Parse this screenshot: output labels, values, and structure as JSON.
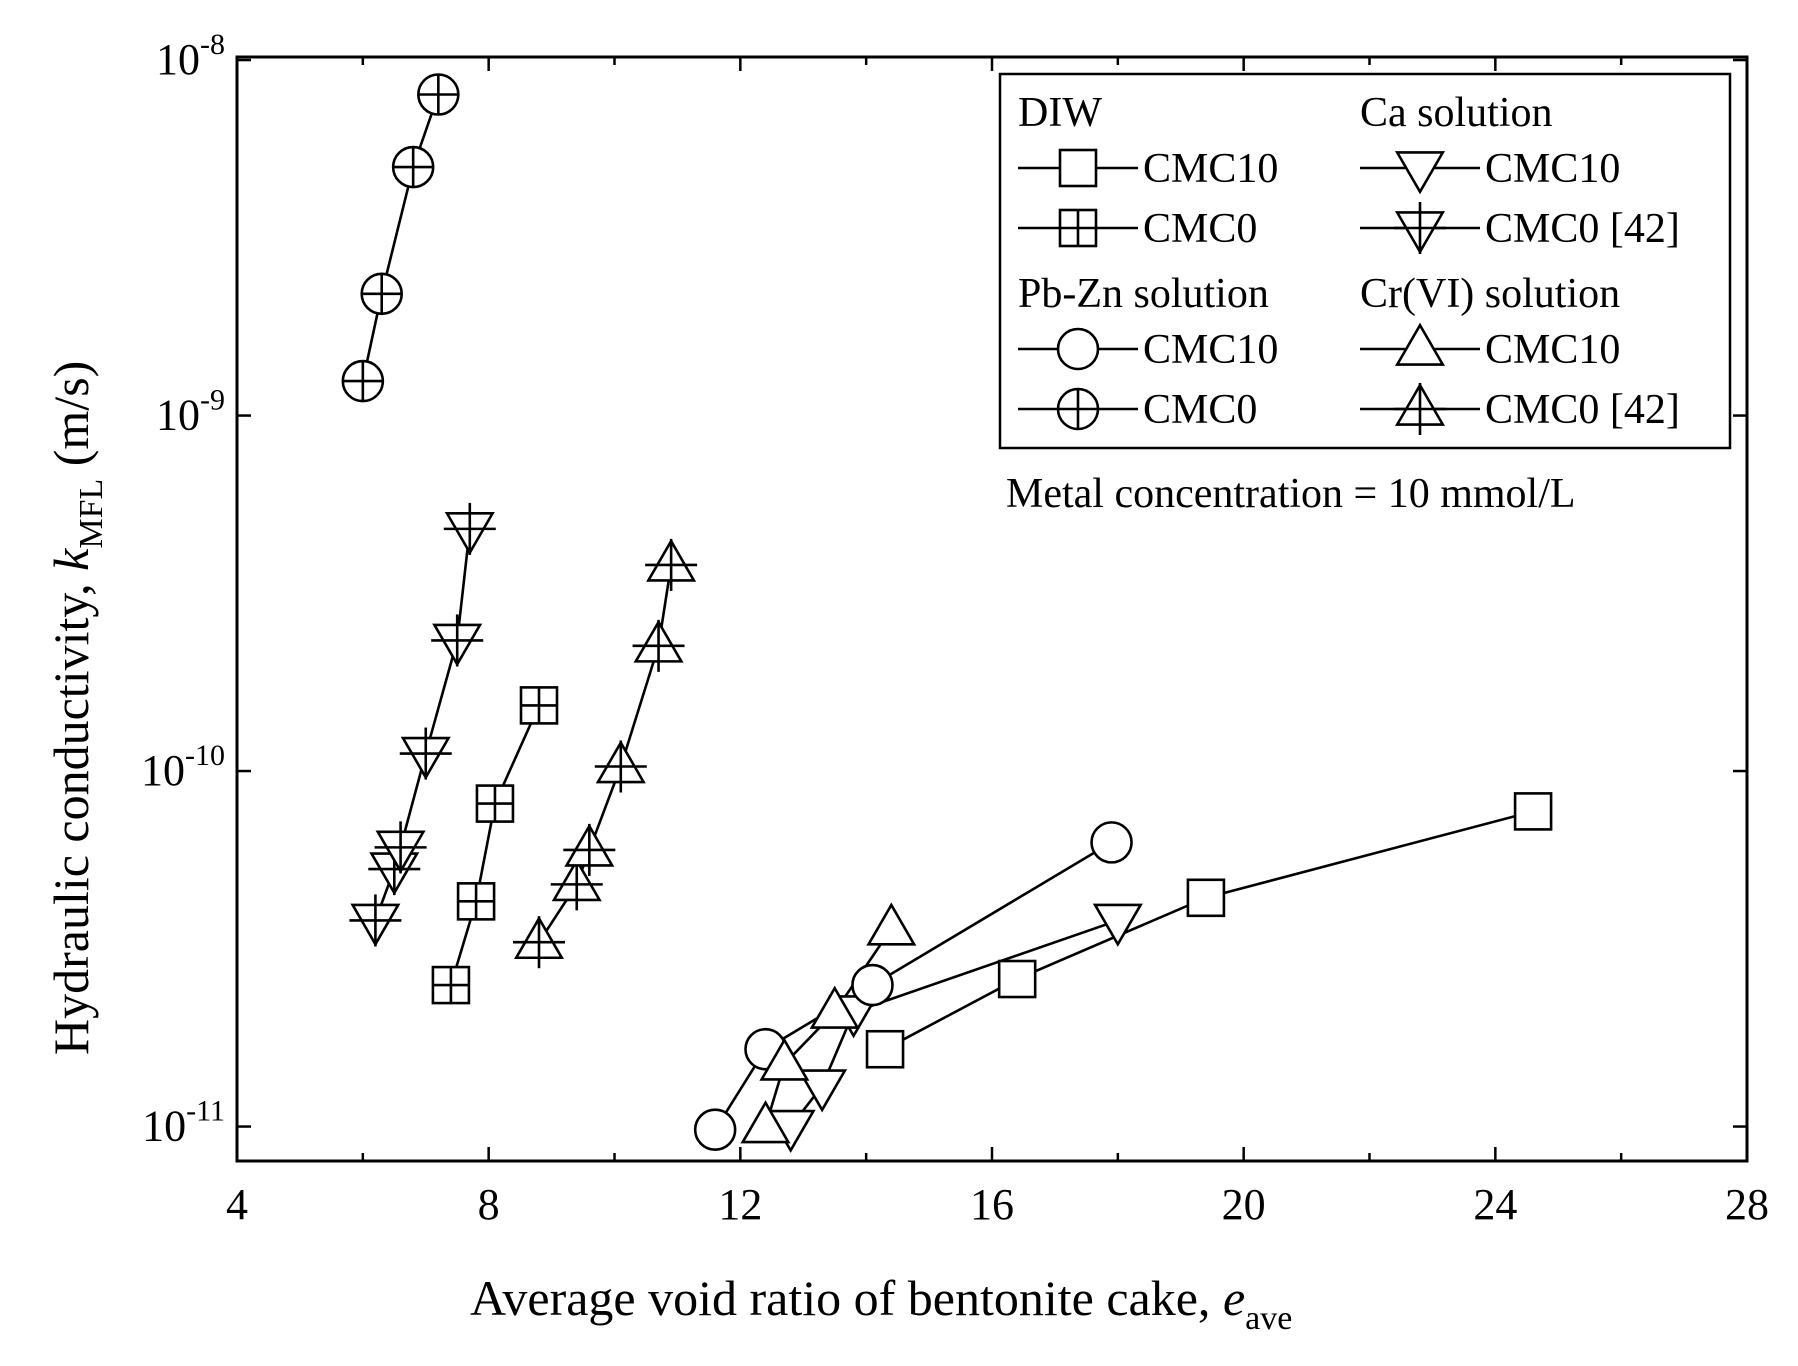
{
  "chart_data": {
    "type": "scatter",
    "xlabel": "Average void ratio of bentonite cake, ",
    "xlabel_symbol": "e",
    "xlabel_subscript": "ave",
    "ylabel": "Hydraulic conductivity, ",
    "ylabel_symbol": "k",
    "ylabel_subscript": "MFL",
    "ylabel_unit": " (m/s)",
    "xlim": [
      4,
      28
    ],
    "ylim": [
      8e-12,
      1.02e-08
    ],
    "yscale": "log",
    "x_ticks": [
      4,
      8,
      12,
      16,
      20,
      24,
      28
    ],
    "x_tick_labels": [
      "4",
      "8",
      "12",
      "16",
      "20",
      "24",
      "28"
    ],
    "y_ticks": [
      1e-11,
      1e-10,
      1e-09,
      1e-08
    ],
    "y_tick_labels": [
      {
        "base": "10",
        "exp": "-11"
      },
      {
        "base": "10",
        "exp": "-10"
      },
      {
        "base": "10",
        "exp": "-9"
      },
      {
        "base": "10",
        "exp": "-8"
      }
    ],
    "legend_position": "top-right",
    "legend_groups": [
      {
        "title": "DIW",
        "entries": [
          "CMC10",
          "CMC0"
        ]
      },
      {
        "title": "Ca solution",
        "entries": [
          "CMC10",
          "CMC0 [42]"
        ]
      },
      {
        "title": "Pb-Zn solution",
        "entries": [
          "CMC10",
          "CMC0"
        ]
      },
      {
        "title": "Cr(VI) solution",
        "entries": [
          "CMC10",
          "CMC0 [42]"
        ]
      }
    ],
    "annotation": "Metal concentration = 10 mmol/L",
    "series": [
      {
        "name": "DIW CMC10",
        "marker": "square",
        "x": [
          14.3,
          16.4,
          19.4,
          24.6
        ],
        "y": [
          1.65e-11,
          2.6e-11,
          4.4e-11,
          7.7e-11
        ]
      },
      {
        "name": "DIW CMC0",
        "marker": "square-plus",
        "x": [
          7.4,
          7.8,
          8.1,
          8.8
        ],
        "y": [
          2.5e-11,
          4.3e-11,
          8.1e-11,
          1.53e-10
        ]
      },
      {
        "name": "Ca solution CMC10",
        "marker": "triangle-down",
        "x": [
          12.8,
          13.3,
          13.8,
          18.0
        ],
        "y": [
          1e-11,
          1.3e-11,
          2.1e-11,
          3.8e-11
        ]
      },
      {
        "name": "Ca solution CMC0 [42]",
        "marker": "triangle-down-plus",
        "x": [
          6.2,
          6.5,
          6.6,
          7.0,
          7.5,
          7.7
        ],
        "y": [
          3.8e-11,
          5.3e-11,
          6.1e-11,
          1.12e-10,
          2.33e-10,
          4.8e-10
        ]
      },
      {
        "name": "Pb-Zn solution CMC10",
        "marker": "circle",
        "x": [
          11.6,
          12.4,
          14.1,
          17.9
        ],
        "y": [
          9.8e-12,
          1.65e-11,
          2.5e-11,
          6.3e-11
        ]
      },
      {
        "name": "Pb-Zn solution CMC0",
        "marker": "circle-plus",
        "x": [
          6.0,
          6.3,
          6.8,
          7.2
        ],
        "y": [
          1.25e-09,
          2.2e-09,
          5e-09,
          8e-09
        ]
      },
      {
        "name": "Cr(VI) solution CMC10",
        "marker": "triangle-up",
        "x": [
          12.4,
          12.7,
          13.5,
          14.4
        ],
        "y": [
          1e-11,
          1.5e-11,
          2.1e-11,
          3.6e-11
        ]
      },
      {
        "name": "Cr(VI) solution CMC0 [42]",
        "marker": "triangle-up-plus",
        "x": [
          8.8,
          9.4,
          9.6,
          10.1,
          10.7,
          10.9
        ],
        "y": [
          3.3e-11,
          4.8e-11,
          6e-11,
          1.03e-10,
          2.25e-10,
          3.8e-10
        ]
      }
    ]
  }
}
